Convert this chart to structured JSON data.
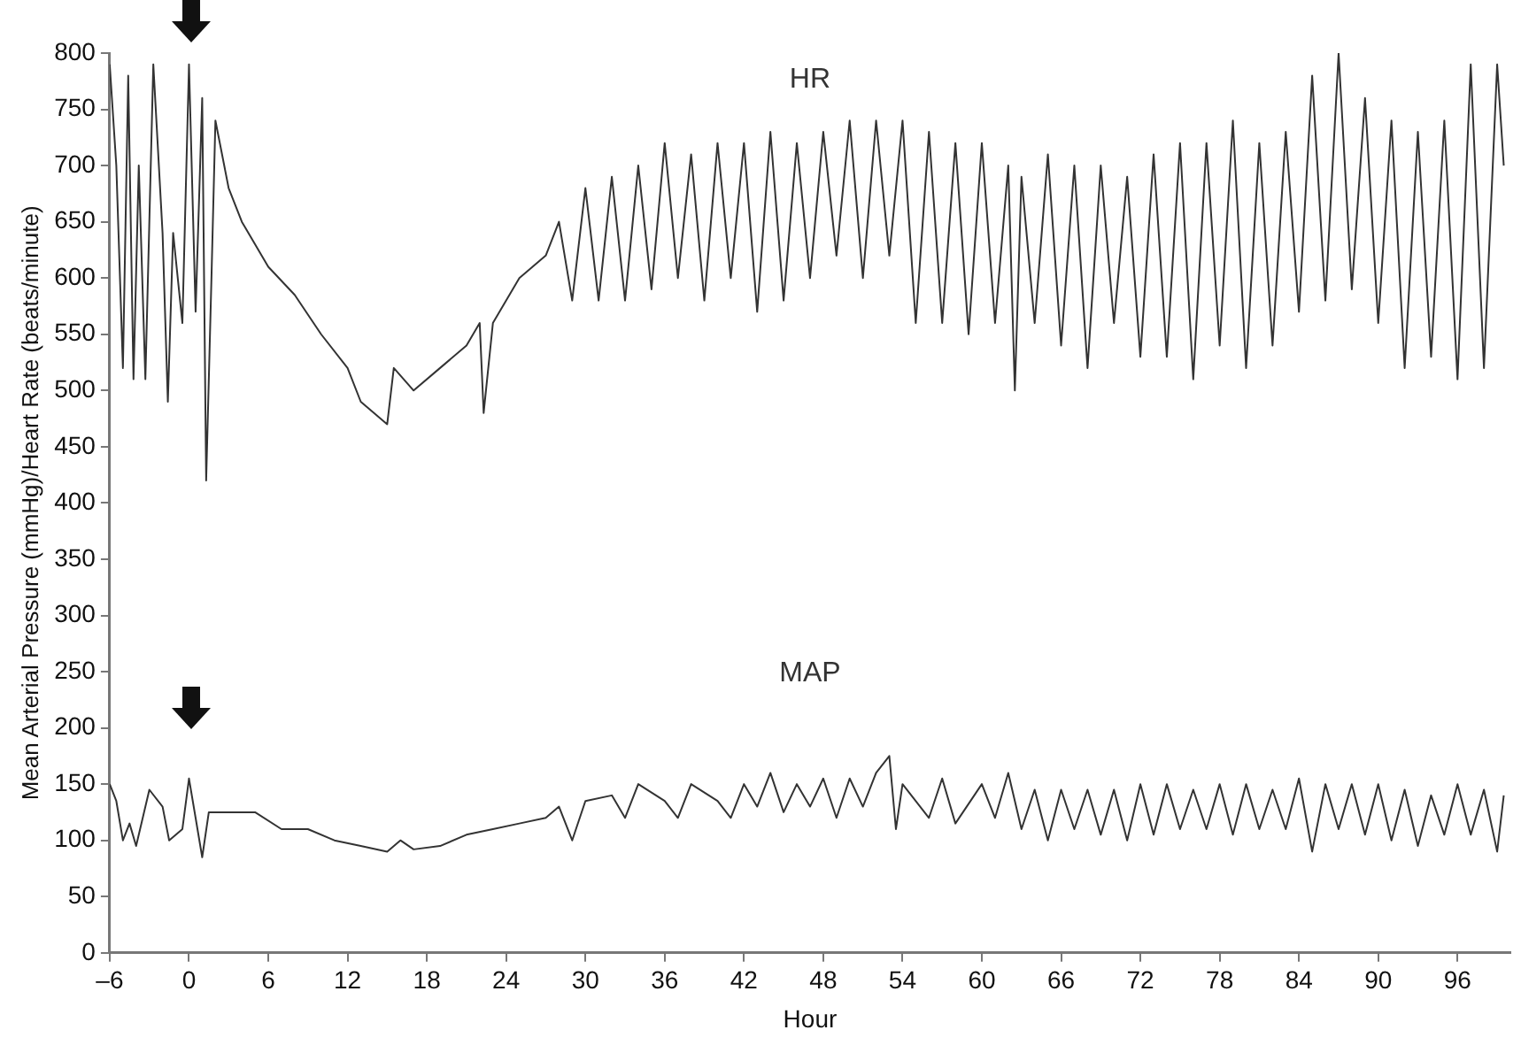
{
  "chart_data": {
    "type": "line",
    "xlabel": "Hour",
    "ylabel": "Mean Arterial Pressure (mmHg)/Heart Rate (beats/minute)",
    "xlim": [
      -6,
      100
    ],
    "xticks": [
      {
        "value": -6,
        "label": "–6"
      },
      0,
      6,
      12,
      18,
      24,
      30,
      36,
      42,
      48,
      54,
      60,
      66,
      72,
      78,
      84,
      90,
      96
    ],
    "ylim": [
      0,
      800
    ],
    "yticks": [
      0,
      50,
      100,
      150,
      200,
      250,
      300,
      350,
      400,
      450,
      500,
      550,
      600,
      650,
      700,
      750,
      800
    ],
    "grid": false,
    "legend": false,
    "marker": "none",
    "line_style": "solid",
    "series": [
      {
        "name": "HR",
        "color": "#333333",
        "x": [
          -6,
          -5.5,
          -5,
          -4.6,
          -4.2,
          -3.8,
          -3.3,
          -2.7,
          -2,
          -1.6,
          -1.2,
          -0.5,
          0,
          0.5,
          1,
          1.3,
          1.7,
          2,
          3,
          4,
          6,
          8,
          10,
          12,
          13,
          14,
          15,
          15.5,
          17,
          19,
          21,
          22,
          22.3,
          23,
          25,
          27,
          28,
          29,
          30,
          31,
          32,
          33,
          34,
          35,
          36,
          37,
          38,
          39,
          40,
          41,
          42,
          43,
          44,
          45,
          46,
          47,
          48,
          49,
          50,
          51,
          52,
          53,
          54,
          55,
          56,
          57,
          58,
          59,
          60,
          61,
          62,
          62.5,
          63,
          64,
          65,
          66,
          67,
          68,
          69,
          70,
          71,
          72,
          73,
          74,
          75,
          76,
          77,
          78,
          79,
          80,
          81,
          82,
          83,
          84,
          85,
          86,
          87,
          88,
          89,
          90,
          91,
          92,
          93,
          94,
          95,
          96,
          97,
          98,
          99,
          99.5
        ],
        "values": [
          790,
          700,
          520,
          780,
          510,
          700,
          510,
          790,
          640,
          490,
          640,
          560,
          790,
          570,
          760,
          420,
          600,
          740,
          680,
          650,
          610,
          585,
          550,
          520,
          490,
          480,
          470,
          520,
          500,
          520,
          540,
          560,
          480,
          560,
          600,
          620,
          650,
          580,
          680,
          580,
          690,
          580,
          700,
          590,
          720,
          600,
          710,
          580,
          720,
          600,
          720,
          570,
          730,
          580,
          720,
          600,
          730,
          620,
          740,
          600,
          740,
          620,
          740,
          560,
          730,
          560,
          720,
          550,
          720,
          560,
          700,
          500,
          690,
          560,
          710,
          540,
          700,
          520,
          700,
          560,
          690,
          530,
          710,
          530,
          720,
          510,
          720,
          540,
          740,
          520,
          720,
          540,
          730,
          570,
          780,
          580,
          800,
          590,
          760,
          560,
          740,
          520,
          730,
          530,
          740,
          510,
          790,
          520,
          790,
          700
        ]
      },
      {
        "name": "MAP",
        "color": "#333333",
        "x": [
          -6,
          -5.5,
          -5,
          -4.5,
          -4,
          -3,
          -2,
          -1.5,
          -0.5,
          0,
          0.5,
          1,
          1.5,
          3,
          5,
          7,
          9,
          11,
          13,
          15,
          16,
          17,
          19,
          21,
          23,
          25,
          27,
          28,
          29,
          30,
          32,
          33,
          34,
          36,
          37,
          38,
          40,
          41,
          42,
          43,
          44,
          45,
          46,
          47,
          48,
          49,
          50,
          51,
          52,
          53,
          53.5,
          54,
          56,
          57,
          58,
          60,
          61,
          62,
          63,
          64,
          65,
          66,
          67,
          68,
          69,
          70,
          71,
          72,
          73,
          74,
          75,
          76,
          77,
          78,
          79,
          80,
          81,
          82,
          83,
          84,
          85,
          86,
          87,
          88,
          89,
          90,
          91,
          92,
          93,
          94,
          95,
          96,
          97,
          98,
          99,
          99.5
        ],
        "values": [
          150,
          135,
          100,
          115,
          95,
          145,
          130,
          100,
          110,
          155,
          120,
          85,
          125,
          125,
          125,
          110,
          110,
          100,
          95,
          90,
          100,
          92,
          95,
          105,
          110,
          115,
          120,
          130,
          100,
          135,
          140,
          120,
          150,
          135,
          120,
          150,
          135,
          120,
          150,
          130,
          160,
          125,
          150,
          130,
          155,
          120,
          155,
          130,
          160,
          175,
          110,
          150,
          120,
          155,
          115,
          150,
          120,
          160,
          110,
          145,
          100,
          145,
          110,
          145,
          105,
          145,
          100,
          150,
          105,
          150,
          110,
          145,
          110,
          150,
          105,
          150,
          110,
          145,
          110,
          155,
          90,
          150,
          110,
          150,
          105,
          150,
          100,
          145,
          95,
          140,
          105,
          150,
          105,
          145,
          90,
          140
        ]
      }
    ]
  }
}
